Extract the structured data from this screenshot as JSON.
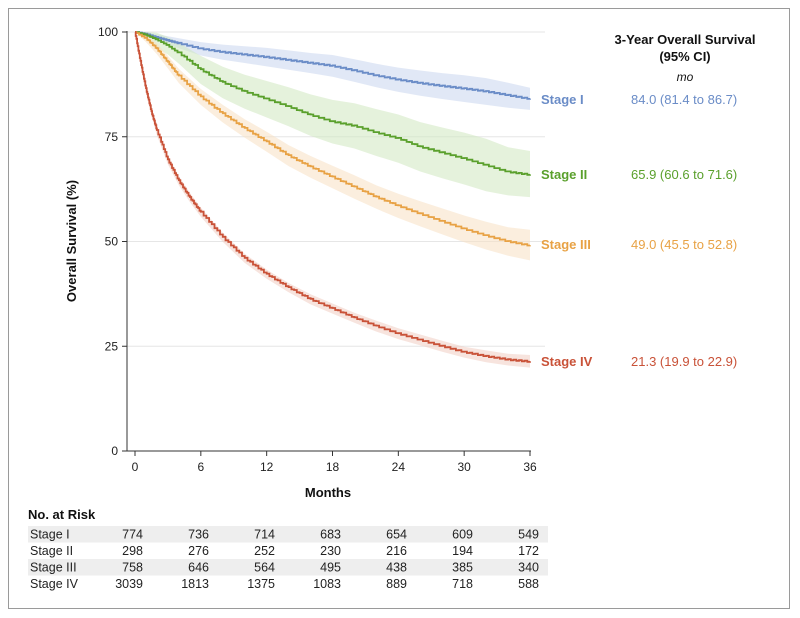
{
  "chart_data": {
    "type": "line",
    "subtype": "kaplan-meier",
    "xlabel": "Months",
    "ylabel": "Overall Survival (%)",
    "xlim": [
      0,
      36
    ],
    "ylim": [
      0,
      100
    ],
    "xticks": [
      0,
      6,
      12,
      18,
      24,
      30,
      36
    ],
    "yticks": [
      0,
      25,
      50,
      75,
      100
    ],
    "grid": "horizontal",
    "summary_header": {
      "title_line1": "3-Year Overall Survival",
      "title_line2": "(95% CI)",
      "unit": "mo"
    },
    "series": [
      {
        "name": "Stage I",
        "color": "#6a8cc7",
        "band_color": "#c9d6ee",
        "summary": "84.0 (81.4 to 86.7)",
        "x": [
          0,
          1,
          2,
          3,
          4,
          6,
          8,
          10,
          12,
          14,
          16,
          18,
          20,
          22,
          24,
          26,
          28,
          30,
          32,
          34,
          36
        ],
        "y": [
          100,
          99.5,
          98.7,
          98.0,
          97.3,
          96.0,
          95.2,
          94.6,
          94.0,
          93.3,
          92.6,
          91.9,
          90.8,
          89.6,
          88.6,
          87.8,
          87.1,
          86.5,
          85.8,
          84.9,
          84.0
        ],
        "lower": [
          100,
          99.0,
          98.0,
          97.0,
          96.1,
          94.4,
          93.4,
          92.6,
          91.8,
          91.0,
          90.2,
          89.3,
          88.1,
          86.8,
          85.7,
          84.8,
          84.0,
          83.3,
          82.6,
          81.9,
          81.4
        ],
        "upper": [
          100,
          100,
          99.5,
          99.0,
          98.5,
          97.6,
          97.0,
          96.6,
          96.2,
          95.6,
          95.0,
          94.5,
          93.5,
          92.4,
          91.5,
          90.8,
          90.2,
          89.7,
          89.0,
          87.9,
          86.7
        ]
      },
      {
        "name": "Stage II",
        "color": "#5aa02c",
        "band_color": "#cfe8c0",
        "summary": "65.9 (60.6 to 71.6)",
        "x": [
          0,
          1,
          2,
          3,
          4,
          6,
          8,
          10,
          12,
          14,
          16,
          18,
          20,
          22,
          24,
          26,
          28,
          30,
          32,
          34,
          36
        ],
        "y": [
          100,
          99.3,
          98.2,
          96.8,
          95.0,
          91.0,
          88.0,
          85.8,
          84.0,
          82.2,
          80.2,
          78.6,
          77.6,
          76.0,
          74.6,
          72.6,
          71.2,
          69.8,
          68.2,
          66.6,
          65.9
        ],
        "lower": [
          100,
          98.3,
          96.4,
          94.6,
          92.4,
          87.6,
          84.2,
          81.7,
          79.6,
          77.5,
          75.2,
          73.4,
          72.2,
          70.4,
          68.8,
          66.7,
          65.1,
          63.6,
          62.0,
          61.0,
          60.6
        ],
        "upper": [
          100,
          100,
          99.8,
          98.8,
          97.4,
          94.3,
          91.7,
          89.8,
          88.3,
          86.8,
          85.1,
          83.8,
          83.0,
          81.6,
          80.3,
          78.5,
          77.2,
          76.0,
          74.5,
          72.5,
          71.6
        ]
      },
      {
        "name": "Stage III",
        "color": "#e8a245",
        "band_color": "#f7e0c2",
        "summary": "49.0 (45.5 to 52.8)",
        "x": [
          0,
          1,
          2,
          3,
          4,
          6,
          8,
          10,
          12,
          14,
          16,
          18,
          20,
          22,
          24,
          26,
          28,
          30,
          32,
          34,
          36
        ],
        "y": [
          100,
          98.5,
          96.0,
          92.8,
          89.5,
          84.5,
          80.5,
          77.0,
          73.8,
          70.5,
          67.8,
          65.4,
          63.0,
          60.6,
          58.5,
          56.6,
          54.8,
          53.0,
          51.4,
          50.0,
          49.0
        ],
        "lower": [
          100,
          97.6,
          94.7,
          91.3,
          87.8,
          82.6,
          78.4,
          74.8,
          71.4,
          68.0,
          65.2,
          62.7,
          60.2,
          57.8,
          55.6,
          53.6,
          51.7,
          49.8,
          48.1,
          46.6,
          45.5
        ],
        "upper": [
          100,
          99.4,
          97.3,
          94.3,
          91.2,
          86.4,
          82.6,
          79.2,
          76.2,
          73.0,
          70.4,
          68.1,
          65.8,
          63.4,
          61.4,
          59.6,
          57.9,
          56.2,
          54.7,
          53.4,
          52.8
        ]
      },
      {
        "name": "Stage IV",
        "color": "#c95238",
        "band_color": "#f0cdc3",
        "summary": "21.3 (19.9 to 22.9)",
        "x": [
          0,
          0.5,
          1,
          1.5,
          2,
          3,
          4,
          5,
          6,
          8,
          10,
          12,
          14,
          16,
          18,
          20,
          22,
          24,
          26,
          28,
          30,
          32,
          34,
          36
        ],
        "y": [
          100,
          93.0,
          86.5,
          81.0,
          76.5,
          69.5,
          64.5,
          60.5,
          57.0,
          51.0,
          46.0,
          42.2,
          39.0,
          36.2,
          34.0,
          31.8,
          29.8,
          28.0,
          26.5,
          25.0,
          23.6,
          22.6,
          21.8,
          21.3
        ],
        "lower": [
          100,
          92.0,
          85.4,
          79.9,
          75.4,
          68.4,
          63.4,
          59.4,
          55.9,
          49.9,
          44.9,
          41.1,
          37.9,
          35.0,
          32.8,
          30.6,
          28.5,
          26.7,
          25.2,
          23.7,
          22.3,
          21.2,
          20.4,
          19.9
        ],
        "upper": [
          100,
          94.0,
          87.6,
          82.1,
          77.6,
          70.6,
          65.6,
          61.6,
          58.1,
          52.1,
          47.1,
          43.3,
          40.1,
          37.4,
          35.2,
          33.0,
          31.1,
          29.3,
          27.8,
          26.3,
          24.9,
          24.0,
          23.2,
          22.9
        ]
      }
    ],
    "risk_table": {
      "title": "No. at Risk",
      "rows": [
        {
          "name": "Stage I",
          "values": [
            774,
            736,
            714,
            683,
            654,
            609,
            549
          ]
        },
        {
          "name": "Stage II",
          "values": [
            298,
            276,
            252,
            230,
            216,
            194,
            172
          ]
        },
        {
          "name": "Stage III",
          "values": [
            758,
            646,
            564,
            495,
            438,
            385,
            340
          ]
        },
        {
          "name": "Stage IV",
          "values": [
            3039,
            1813,
            1375,
            1083,
            889,
            718,
            588
          ]
        }
      ]
    }
  }
}
